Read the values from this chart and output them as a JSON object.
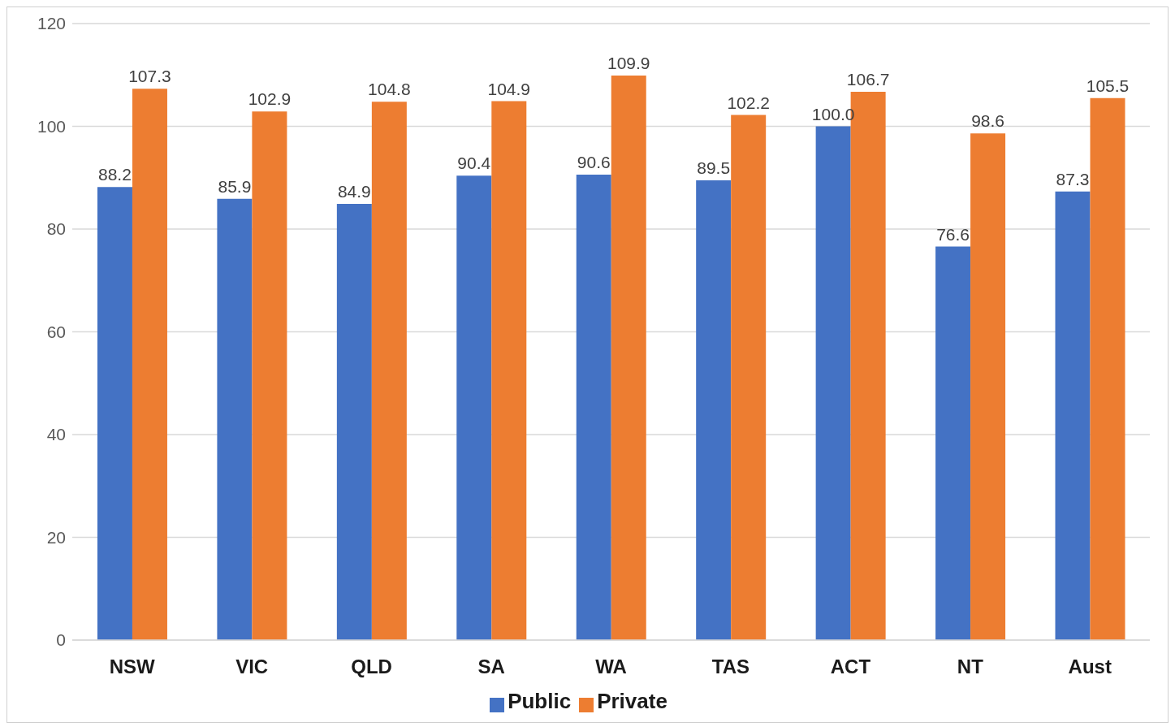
{
  "chart_data": {
    "type": "bar",
    "categories": [
      "NSW",
      "VIC",
      "QLD",
      "SA",
      "WA",
      "TAS",
      "ACT",
      "NT",
      "Aust"
    ],
    "series": [
      {
        "name": "Public",
        "color": "#4472c4",
        "values": [
          88.2,
          85.9,
          84.9,
          90.4,
          90.6,
          89.5,
          100.0,
          76.6,
          87.3
        ],
        "value_labels": [
          "88.2",
          "85.9",
          "84.9",
          "90.4",
          "90.6",
          "89.5",
          "100.0",
          "76.6",
          "87.3"
        ]
      },
      {
        "name": "Private",
        "color": "#ed7d31",
        "values": [
          107.3,
          102.9,
          104.8,
          104.9,
          109.9,
          102.2,
          106.7,
          98.6,
          105.5
        ],
        "value_labels": [
          "107.3",
          "102.9",
          "104.8",
          "104.9",
          "109.9",
          "102.2",
          "106.7",
          "98.6",
          "105.5"
        ]
      }
    ],
    "ylim": [
      0,
      120
    ],
    "yticks": [
      0,
      20,
      40,
      60,
      80,
      100,
      120
    ],
    "grid": "y",
    "legend": "bottom"
  }
}
